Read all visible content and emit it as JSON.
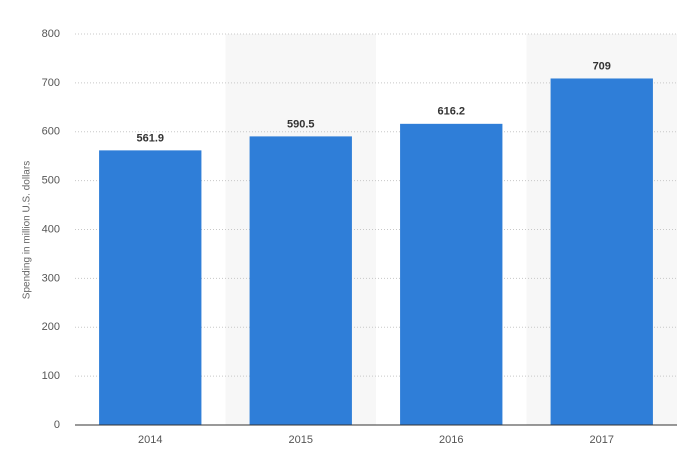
{
  "chart_data": {
    "type": "bar",
    "y_label": "Spending in million U.S. dollars",
    "categories": [
      "2014",
      "2015",
      "2016",
      "2017"
    ],
    "values": [
      561.9,
      590.5,
      616.2,
      709
    ],
    "color": "#2f7ed8",
    "ylim": [
      0,
      800
    ],
    "yticks": [
      0,
      100,
      200,
      300,
      400,
      500,
      600,
      700,
      800
    ],
    "grid": true
  }
}
